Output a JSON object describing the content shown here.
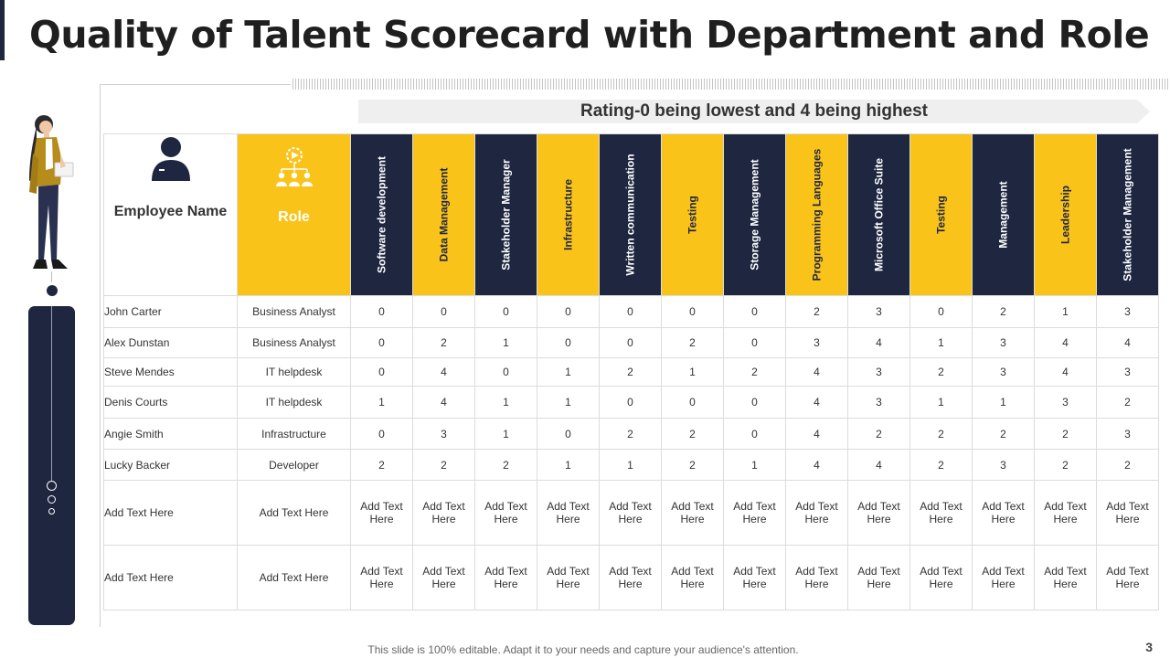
{
  "title": "Quality of Talent Scorecard with Department and Role",
  "rating_note": "Rating-0 being lowest and 4 being highest",
  "headers": {
    "employee": "Employee Name",
    "role": "Role",
    "skills": [
      "Software development",
      "Data Management",
      "Stakeholder Manager",
      "Infrastructure",
      "Written communication",
      "Testing",
      "Storage Management",
      "Programming Languages",
      "Microsoft Office Suite",
      "Testing",
      "Management",
      "Leadership",
      "Stakeholder Management"
    ]
  },
  "rows": [
    {
      "name": "John Carter",
      "role": "Business Analyst",
      "scores": [
        "0",
        "0",
        "0",
        "0",
        "0",
        "0",
        "0",
        "2",
        "3",
        "0",
        "2",
        "1",
        "3"
      ]
    },
    {
      "name": "Alex Dunstan",
      "role": "Business Analyst",
      "scores": [
        "0",
        "2",
        "1",
        "0",
        "0",
        "2",
        "0",
        "3",
        "4",
        "1",
        "3",
        "4",
        "4"
      ]
    },
    {
      "name": "Steve Mendes",
      "role": "IT helpdesk",
      "scores": [
        "0",
        "4",
        "0",
        "1",
        "2",
        "1",
        "2",
        "4",
        "3",
        "2",
        "3",
        "4",
        "3"
      ]
    },
    {
      "name": "Denis Courts",
      "role": "IT helpdesk",
      "scores": [
        "1",
        "4",
        "1",
        "1",
        "0",
        "0",
        "0",
        "4",
        "3",
        "1",
        "1",
        "3",
        "2"
      ]
    },
    {
      "name": "Angie Smith",
      "role": "Infrastructure",
      "scores": [
        "0",
        "3",
        "1",
        "0",
        "2",
        "2",
        "0",
        "4",
        "2",
        "2",
        "2",
        "2",
        "3"
      ]
    },
    {
      "name": "Lucky Backer",
      "role": "Developer",
      "scores": [
        "2",
        "2",
        "2",
        "1",
        "1",
        "2",
        "1",
        "4",
        "4",
        "2",
        "3",
        "2",
        "2"
      ]
    },
    {
      "name": "Add Text Here",
      "role": "Add Text Here",
      "scores": [
        "Add Text Here",
        "Add Text Here",
        "Add Text Here",
        "Add Text Here",
        "Add Text Here",
        "Add Text Here",
        "Add Text Here",
        "Add Text Here",
        "Add Text Here",
        "Add Text Here",
        "Add Text Here",
        "Add Text Here",
        "Add Text Here"
      ]
    },
    {
      "name": "Add Text Here",
      "role": "Add Text Here",
      "scores": [
        "Add Text Here",
        "Add Text Here",
        "Add Text Here",
        "Add Text Here",
        "Add Text Here",
        "Add Text Here",
        "Add Text Here",
        "Add Text Here",
        "Add Text Here",
        "Add Text Here",
        "Add Text Here",
        "Add Text Here",
        "Add Text Here"
      ]
    }
  ],
  "footer": "This slide is 100% editable. Adapt it to your needs and capture your audience's attention.",
  "page_number": "3",
  "colors": {
    "navy": "#1e2640",
    "yellow": "#fac319"
  },
  "icons": {
    "employee": "user-icon",
    "role": "team-hierarchy-icon",
    "illustration": "businesswoman-illustration"
  }
}
